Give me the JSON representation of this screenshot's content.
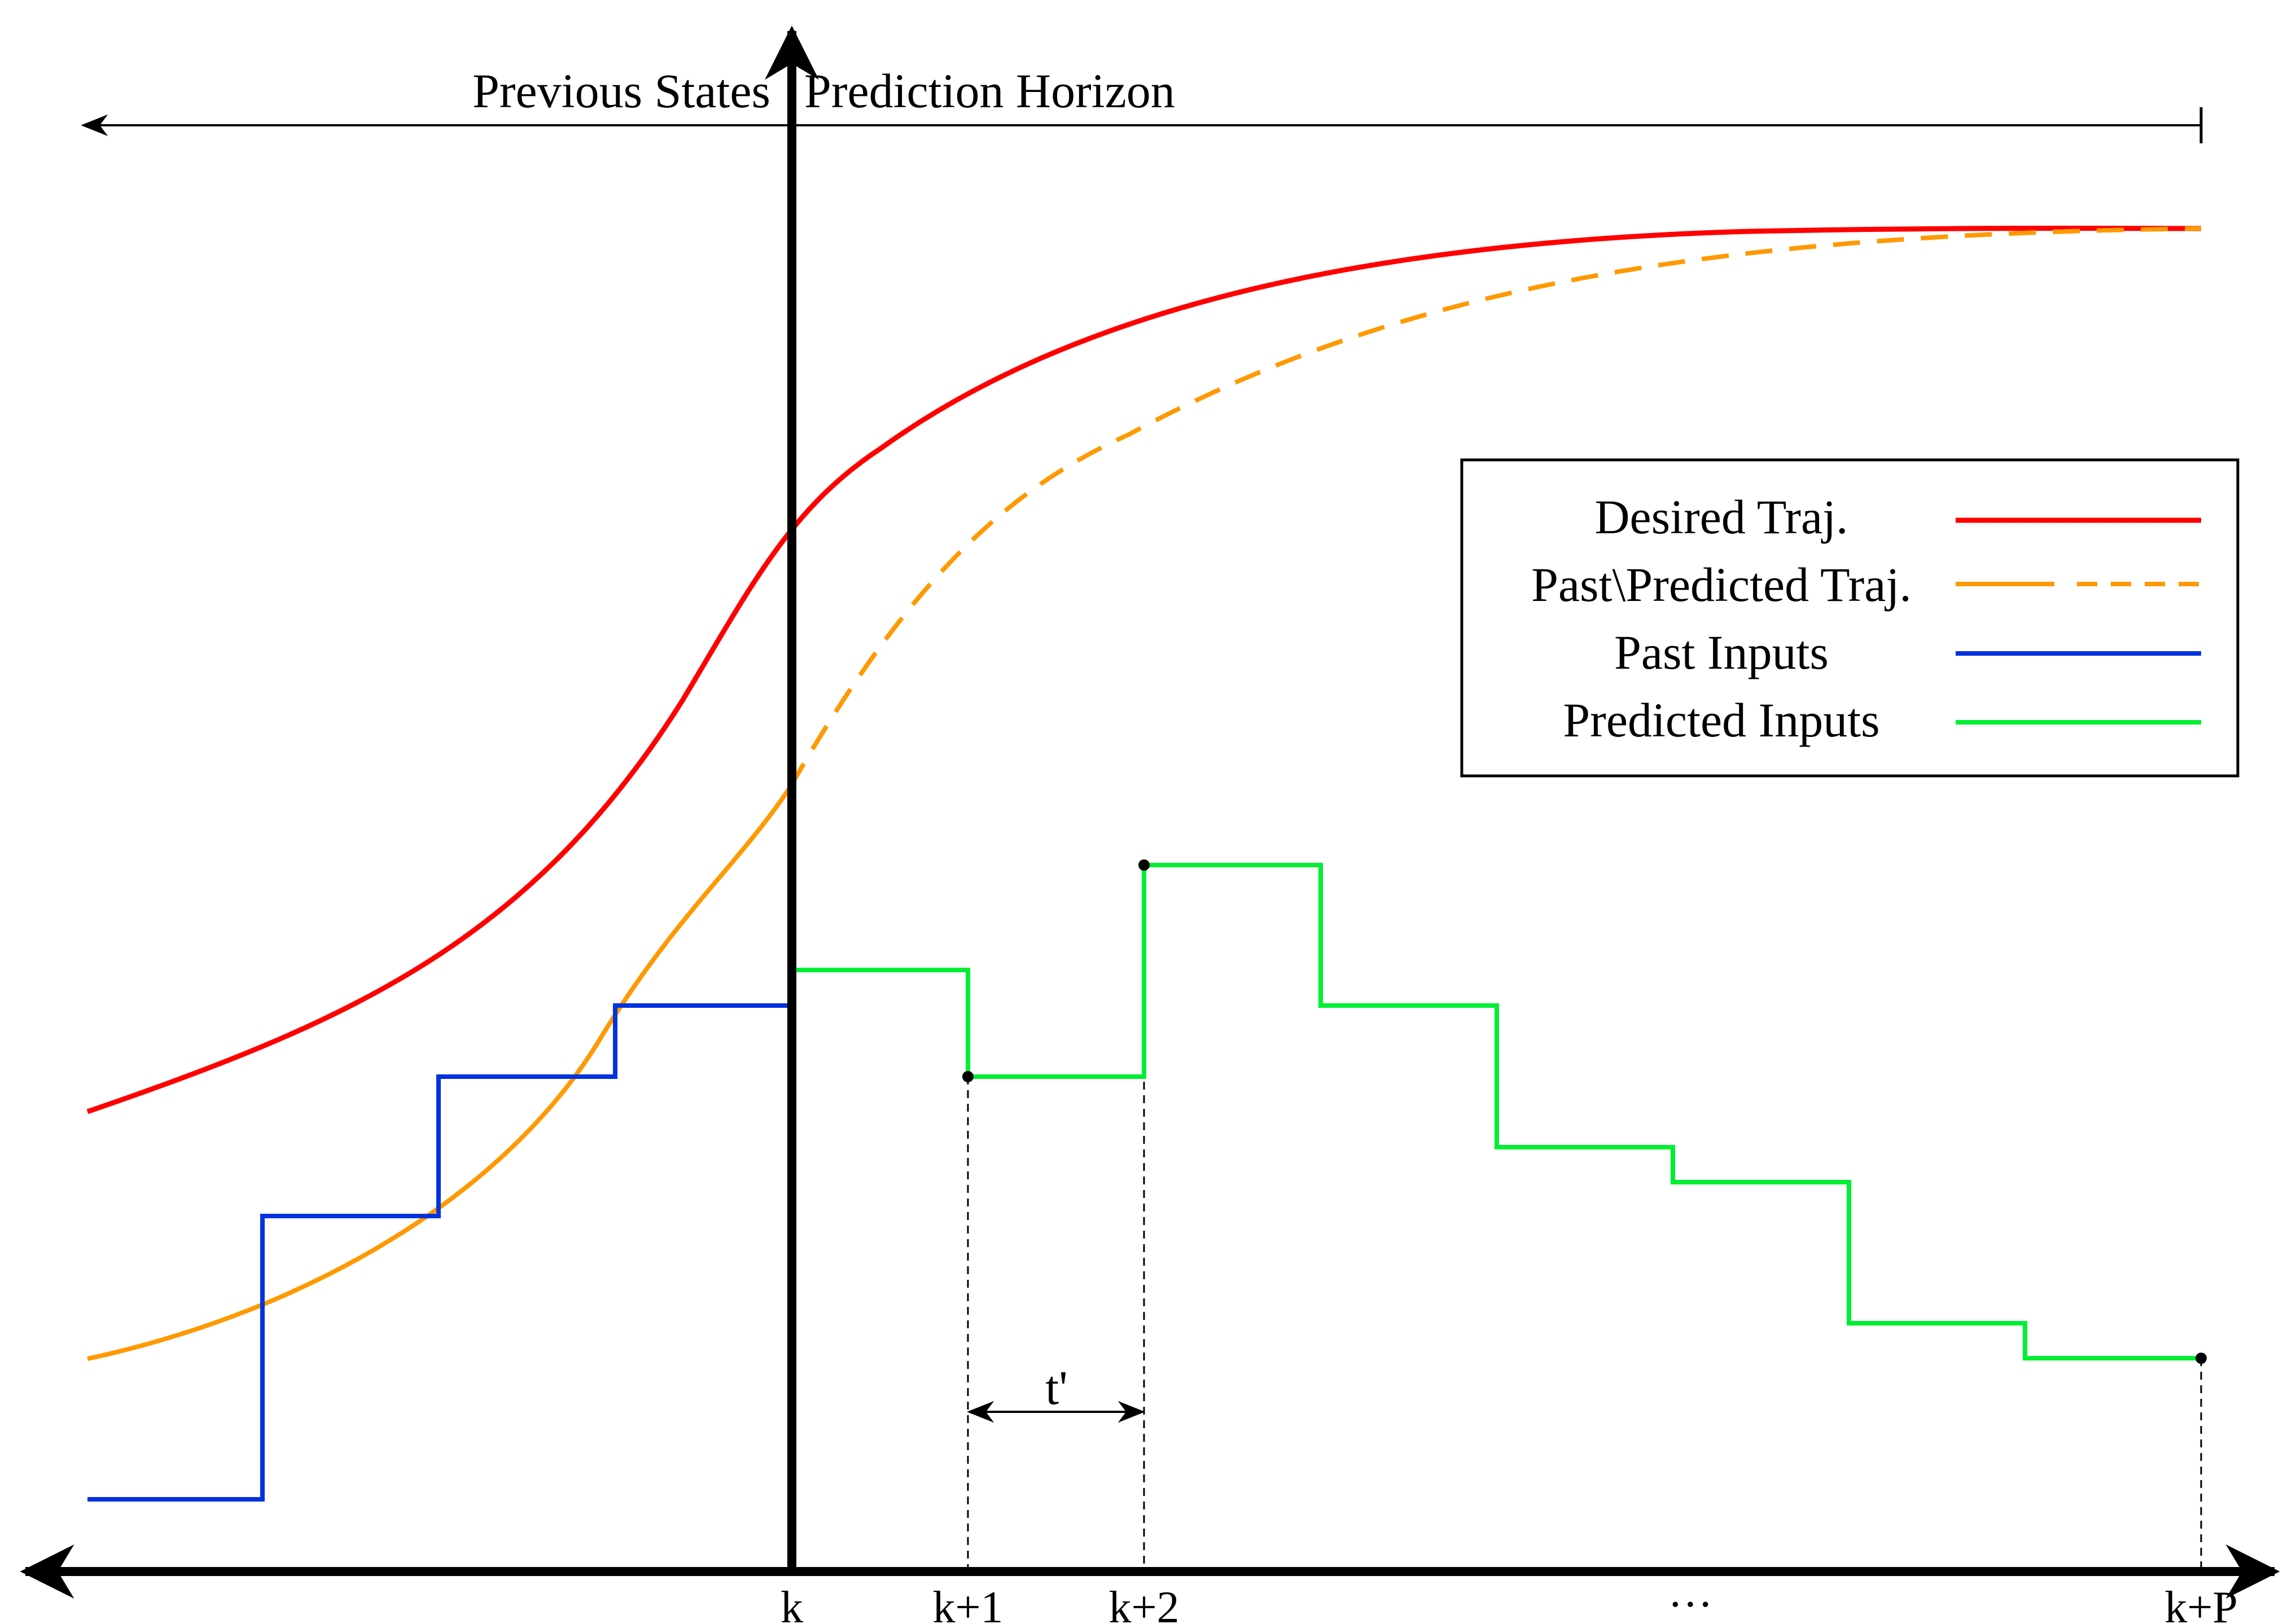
{
  "diagram": {
    "header": {
      "previous_states": "Previous States",
      "prediction_horizon": "Prediction Horizon"
    },
    "ticks": {
      "k": "k",
      "k1": "k+1",
      "k2": "k+2",
      "ellipsis": "···",
      "kp": "k+P"
    },
    "interval_label": "t'",
    "legend": {
      "desired": "Desired Traj.",
      "past_predicted": "Past\\Predicted Traj.",
      "past_inputs": "Past Inputs",
      "predicted_inputs": "Predicted Inputs"
    },
    "colors": {
      "desired": "#ff0000",
      "past_predicted": "#ff9900",
      "past_inputs": "#0033dd",
      "predicted_inputs": "#00ee33",
      "axis": "#000000"
    }
  }
}
